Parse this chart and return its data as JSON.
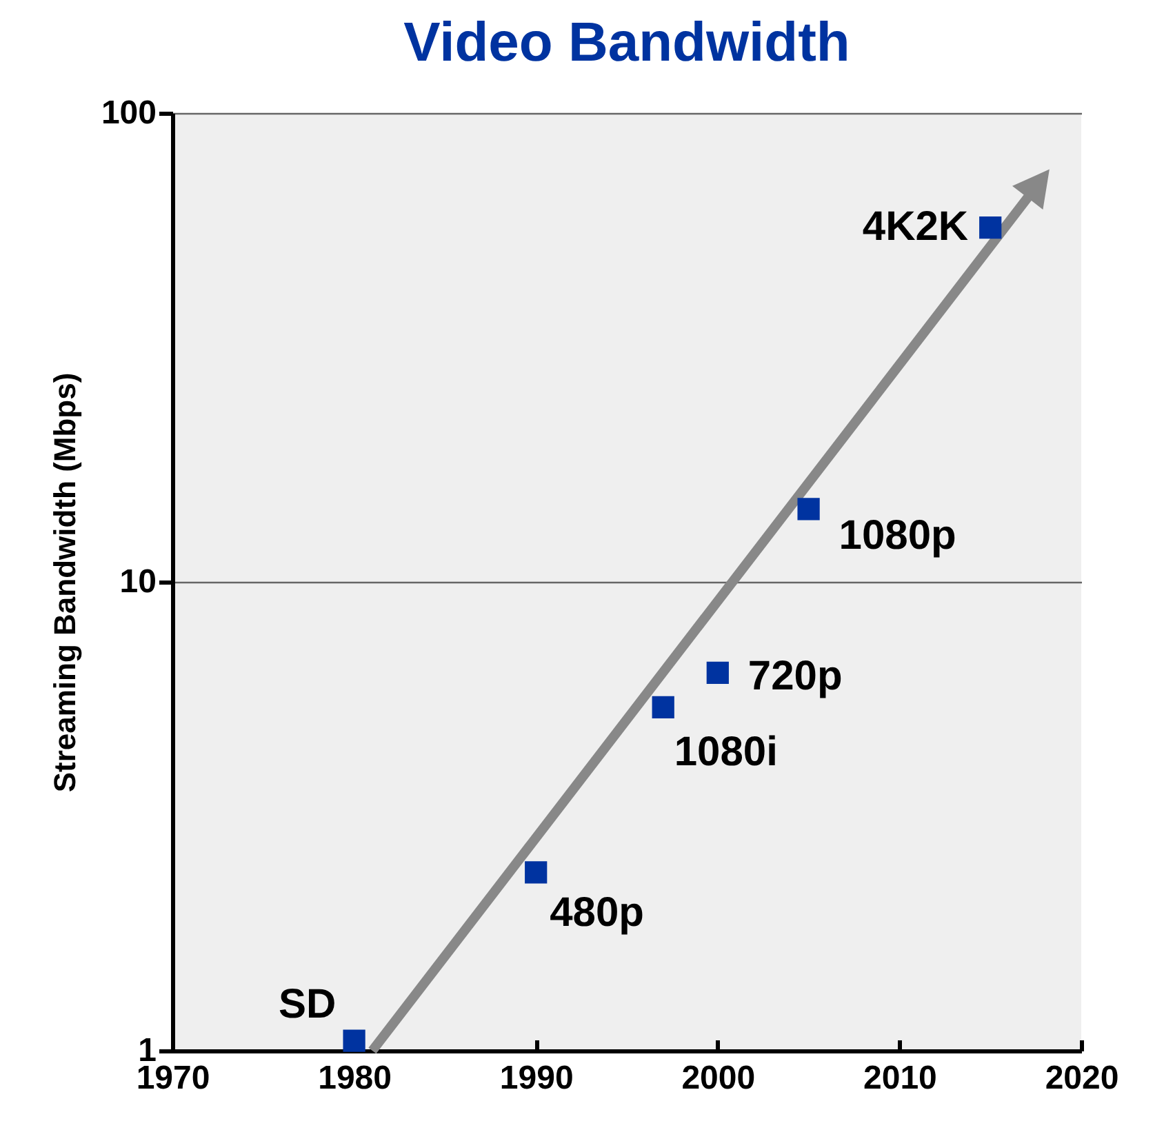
{
  "chart_data": {
    "type": "scatter",
    "title": "Video Bandwidth",
    "ylabel": "Streaming Bandwidth (Mbps)",
    "xlim": [
      1970,
      2020
    ],
    "xticks": [
      1970,
      1980,
      1990,
      2000,
      2010,
      2020
    ],
    "ylim": [
      1,
      100
    ],
    "yticks": [
      1,
      10,
      100
    ],
    "log": "y",
    "grid": "y",
    "marker": "square",
    "series": [
      {
        "color": "#0033a0",
        "x": [
          1980,
          1990,
          1997,
          2000,
          2005,
          2015
        ],
        "values": [
          1.05,
          2.4,
          5.4,
          6.4,
          14.3,
          57
        ]
      }
    ],
    "annotations": [
      {
        "text": "SD",
        "x": 1980,
        "y": 1.05
      },
      {
        "text": "480p",
        "x": 1990,
        "y": 2.4
      },
      {
        "text": "1080i",
        "x": 1997,
        "y": 5.4
      },
      {
        "text": "720p",
        "x": 2000,
        "y": 6.4
      },
      {
        "text": "1080p",
        "x": 2005,
        "y": 14.3
      },
      {
        "text": "4K2K",
        "x": 2015,
        "y": 57
      }
    ]
  }
}
